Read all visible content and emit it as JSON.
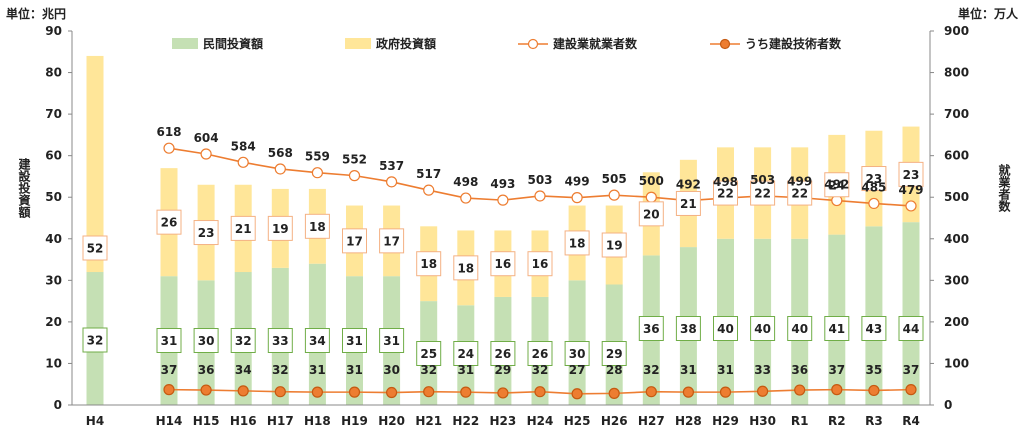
{
  "chart_data": {
    "type": "bar",
    "left_unit": "単位：兆円",
    "right_unit": "単位：万人",
    "ylabel_left": "建設投資額",
    "ylabel_right": "就業者数",
    "ylim_left": [
      0,
      90
    ],
    "ylim_right": [
      0,
      900
    ],
    "yticks_left": [
      "0",
      "10",
      "20",
      "30",
      "40",
      "50",
      "60",
      "70",
      "80",
      "90"
    ],
    "yticks_right": [
      "0",
      "100",
      "200",
      "300",
      "400",
      "500",
      "600",
      "700",
      "800",
      "900"
    ],
    "categories": [
      "H4",
      "H14",
      "H15",
      "H16",
      "H17",
      "H18",
      "H19",
      "H20",
      "H21",
      "H22",
      "H23",
      "H24",
      "H25",
      "H26",
      "H27",
      "H28",
      "H29",
      "H30",
      "R1",
      "R2",
      "R3",
      "R4"
    ],
    "series": [
      {
        "name": "民間投資額",
        "axis": "left",
        "kind": "bar-stack",
        "color": "#c5e0b4",
        "values": [
          32,
          31,
          30,
          32,
          33,
          34,
          31,
          31,
          25,
          24,
          26,
          26,
          30,
          29,
          36,
          38,
          40,
          40,
          40,
          41,
          43,
          44
        ]
      },
      {
        "name": "政府投資額",
        "axis": "left",
        "kind": "bar-stack",
        "color": "#ffe699",
        "values": [
          52,
          26,
          23,
          21,
          19,
          18,
          17,
          17,
          18,
          18,
          16,
          16,
          18,
          19,
          20,
          21,
          22,
          22,
          22,
          24,
          23,
          23
        ]
      },
      {
        "name": "建設業就業者数",
        "axis": "right",
        "kind": "line",
        "color": "#ed7d31",
        "values": [
          null,
          618,
          604,
          584,
          568,
          559,
          552,
          537,
          517,
          498,
          493,
          503,
          499,
          505,
          500,
          492,
          498,
          503,
          499,
          492,
          485,
          479
        ]
      },
      {
        "name": "うち建設技術者数",
        "axis": "right",
        "kind": "line",
        "color": "#ed7d31",
        "values": [
          null,
          37,
          36,
          34,
          32,
          31,
          31,
          30,
          32,
          31,
          29,
          32,
          27,
          28,
          32,
          31,
          31,
          33,
          36,
          37,
          35,
          37
        ]
      }
    ],
    "legend_position": "top",
    "grid": false
  },
  "colors": {
    "private_bar": "#c5e0b4",
    "government_bar": "#ffe699",
    "line": "#ed7d31",
    "private_box_border": "#70ad47",
    "government_box_border": "#f4b183"
  }
}
